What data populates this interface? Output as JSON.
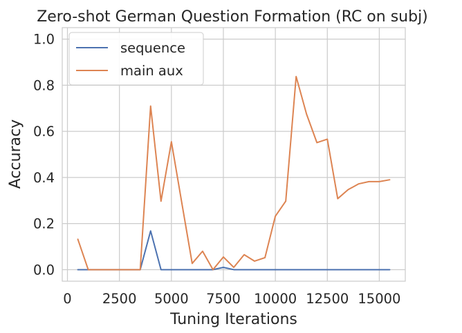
{
  "chart_data": {
    "type": "line",
    "title": "Zero-shot German Question Formation (RC on subj)",
    "xlabel": "Tuning Iterations",
    "ylabel": "Accuracy",
    "xlim": [
      -250,
      16250
    ],
    "ylim": [
      -0.05,
      1.05
    ],
    "xticks": [
      0,
      2500,
      5000,
      7500,
      10000,
      12500,
      15000
    ],
    "xtick_labels": [
      "0",
      "2500",
      "5000",
      "7500",
      "10000",
      "12500",
      "15000"
    ],
    "yticks": [
      0.0,
      0.2,
      0.4,
      0.6,
      0.8,
      1.0
    ],
    "ytick_labels": [
      "0.0",
      "0.2",
      "0.4",
      "0.6",
      "0.8",
      "1.0"
    ],
    "grid": true,
    "legend_position": "top-left",
    "x": [
      500,
      1000,
      1500,
      2000,
      2500,
      3000,
      3500,
      4000,
      4500,
      5000,
      5500,
      6000,
      6500,
      7000,
      7500,
      8000,
      8500,
      9000,
      9500,
      10000,
      10500,
      11000,
      11500,
      12000,
      12500,
      13000,
      13500,
      14000,
      14500,
      15000,
      15500
    ],
    "series": [
      {
        "name": "sequence",
        "color": "#4c72b0",
        "values": [
          0,
          0,
          0,
          0,
          0,
          0,
          0,
          0.168,
          0,
          0,
          0,
          0,
          0,
          0,
          0.01,
          0,
          0,
          0,
          0,
          0,
          0,
          0,
          0,
          0,
          0,
          0,
          0,
          0,
          0,
          0,
          0
        ]
      },
      {
        "name": "main aux",
        "color": "#dd8452",
        "values": [
          0.132,
          0,
          0,
          0,
          0,
          0,
          0,
          0.71,
          0.297,
          0.555,
          0.29,
          0.027,
          0.08,
          0,
          0.055,
          0.01,
          0.065,
          0.037,
          0.052,
          0.232,
          0.297,
          0.838,
          0.675,
          0.551,
          0.566,
          0.308,
          0.347,
          0.372,
          0.382,
          0.382,
          0.39
        ]
      }
    ]
  }
}
